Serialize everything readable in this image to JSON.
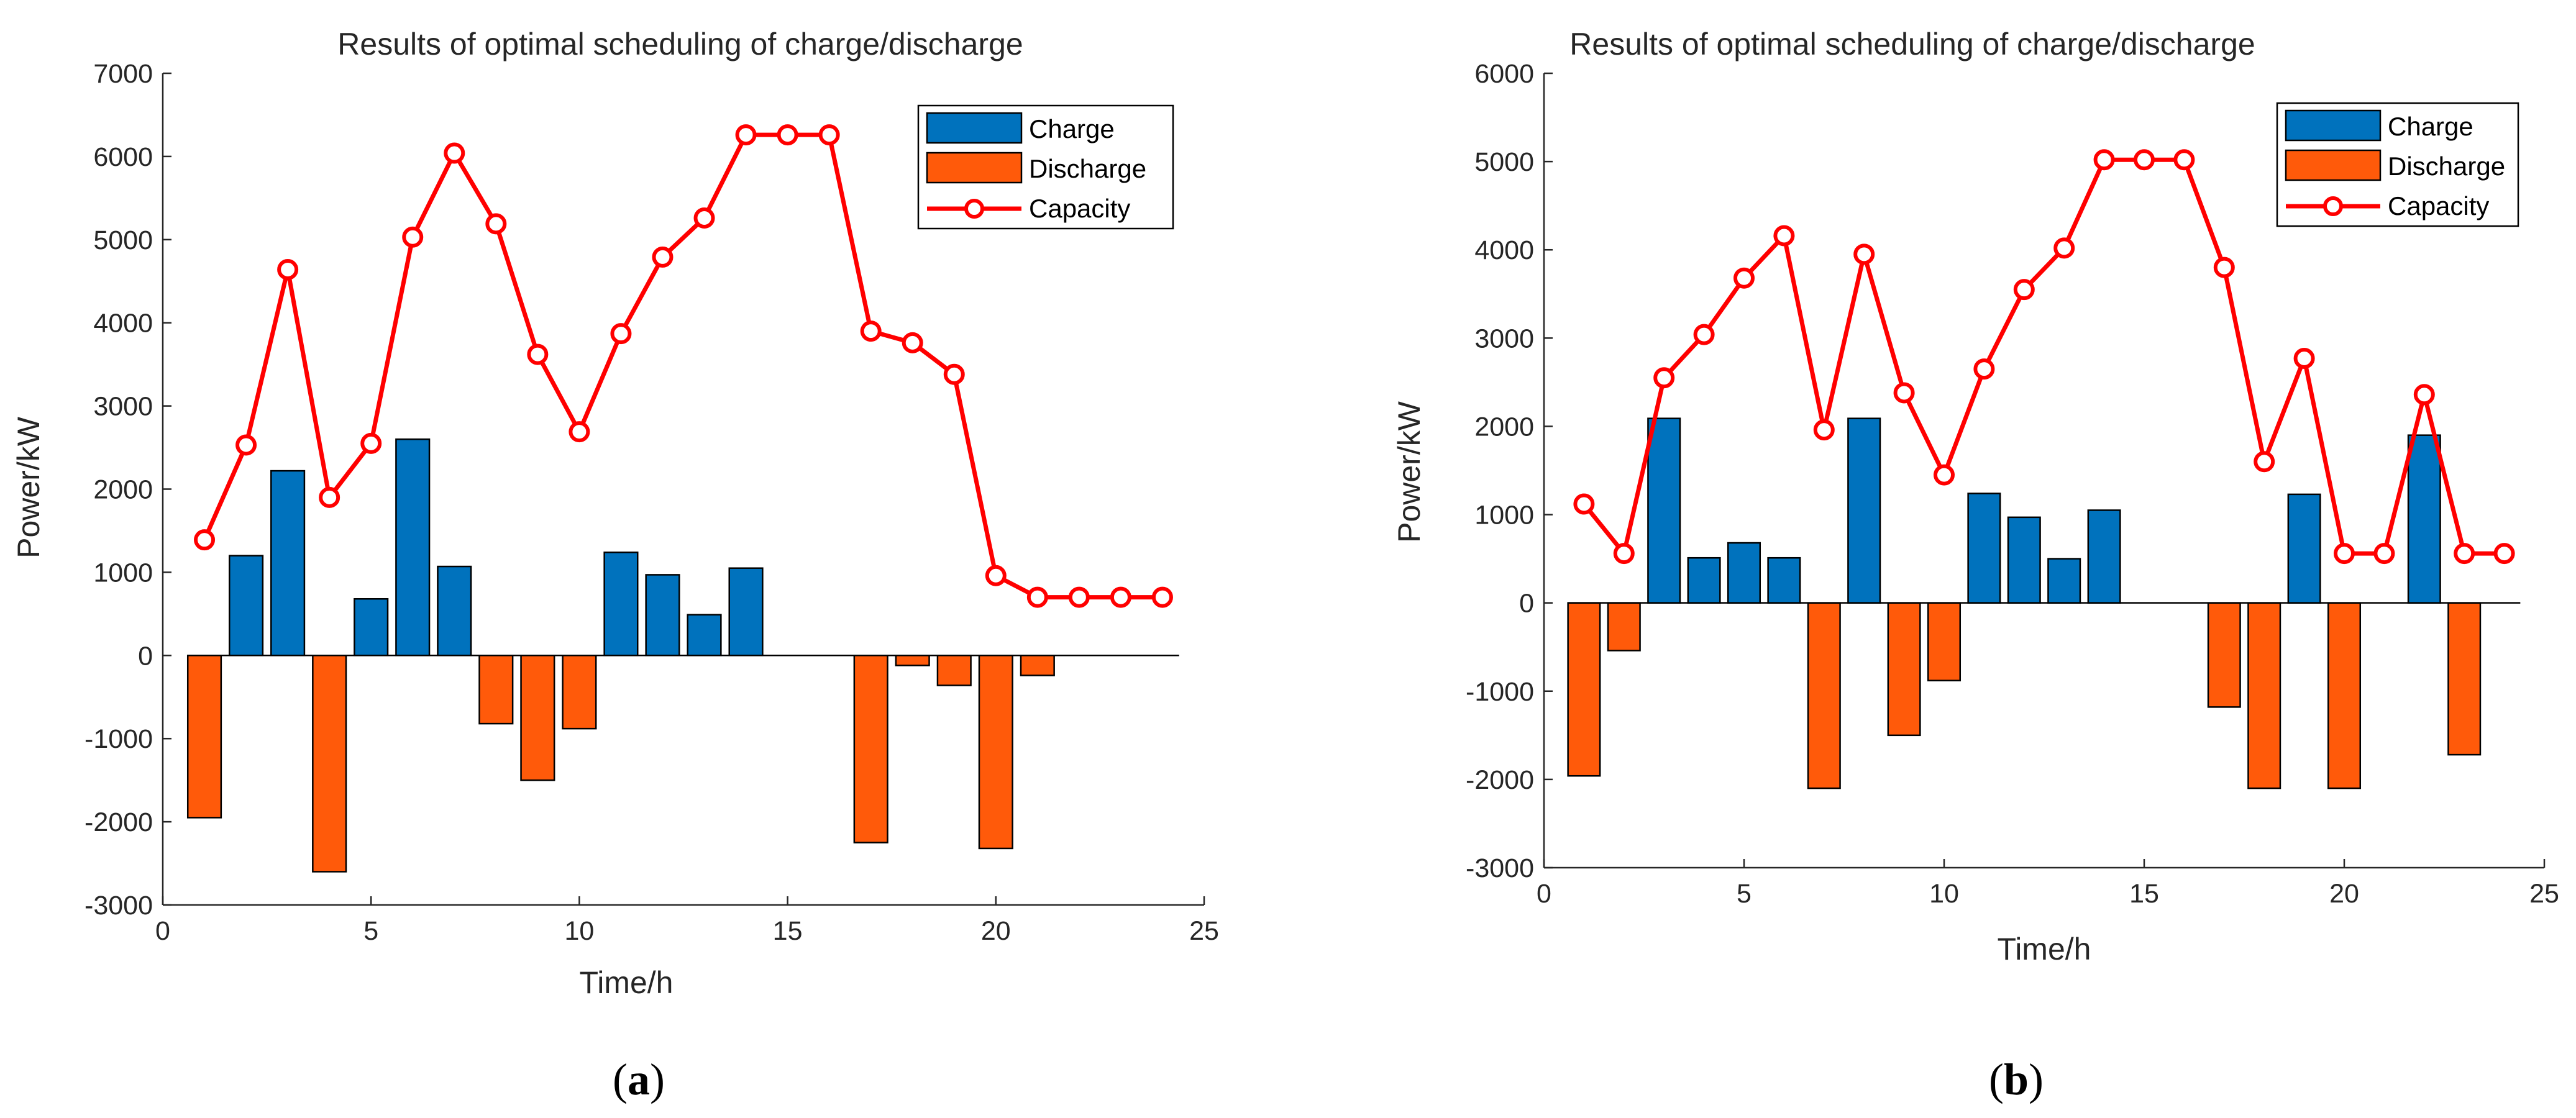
{
  "colors": {
    "charge": "#0072BD",
    "discharge": "#FF5A0A",
    "capacity": "#FF0000",
    "axis": "#262626"
  },
  "chart_data": [
    {
      "type": "bar",
      "title": "Results of optimal scheduling of charge/discharge",
      "xlabel": "Time/h",
      "ylabel": "Power/kW",
      "caption": "a",
      "xlim": [
        0,
        25
      ],
      "ylim": [
        -3000,
        7000
      ],
      "xticks": [
        "0",
        "5",
        "10",
        "15",
        "20",
        "25"
      ],
      "yticks": [
        "-3000",
        "-2000",
        "-1000",
        "0",
        "1000",
        "2000",
        "3000",
        "4000",
        "5000",
        "6000",
        "7000"
      ],
      "x": [
        1,
        2,
        3,
        4,
        5,
        6,
        7,
        8,
        9,
        10,
        11,
        12,
        13,
        14,
        15,
        16,
        17,
        18,
        19,
        20,
        21,
        22,
        23,
        24
      ],
      "series": [
        {
          "name": "Charge",
          "kind": "bar",
          "values": [
            0,
            1200,
            2220,
            0,
            680,
            2600,
            1070,
            0,
            0,
            0,
            1240,
            970,
            490,
            1050,
            0,
            0,
            0,
            0,
            0,
            0,
            0,
            0,
            0,
            0
          ]
        },
        {
          "name": "Discharge",
          "kind": "bar",
          "values": [
            -1950,
            0,
            0,
            -2600,
            0,
            0,
            0,
            -820,
            -1500,
            -880,
            0,
            0,
            0,
            0,
            0,
            0,
            -2250,
            -120,
            -360,
            -2320,
            -240,
            0,
            0,
            0
          ]
        },
        {
          "name": "Capacity",
          "kind": "line",
          "values": [
            1390,
            2530,
            4640,
            1900,
            2550,
            5030,
            6040,
            5190,
            3620,
            2690,
            3870,
            4790,
            5260,
            6260,
            6260,
            6260,
            3900,
            3760,
            3380,
            960,
            700,
            700,
            700,
            700
          ]
        }
      ],
      "legend": [
        "Charge",
        "Discharge",
        "Capacity"
      ],
      "legend_location": "top-right"
    },
    {
      "type": "bar",
      "title": "Results of optimal scheduling of charge/discharge",
      "xlabel": "Time/h",
      "ylabel": "Power/kW",
      "caption": "b",
      "xlim": [
        0,
        25
      ],
      "ylim": [
        -3000,
        6000
      ],
      "xticks": [
        "0",
        "5",
        "10",
        "15",
        "20",
        "25"
      ],
      "yticks": [
        "-3000",
        "-2000",
        "-1000",
        "0",
        "1000",
        "2000",
        "3000",
        "4000",
        "5000",
        "6000"
      ],
      "x": [
        1,
        2,
        3,
        4,
        5,
        6,
        7,
        8,
        9,
        10,
        11,
        12,
        13,
        14,
        15,
        16,
        17,
        18,
        19,
        20,
        21,
        22,
        23,
        24
      ],
      "series": [
        {
          "name": "Charge",
          "kind": "bar",
          "values": [
            0,
            0,
            2090,
            510,
            680,
            510,
            0,
            2090,
            0,
            0,
            1240,
            970,
            500,
            1050,
            0,
            0,
            0,
            0,
            1230,
            0,
            0,
            1900,
            0,
            0
          ]
        },
        {
          "name": "Discharge",
          "kind": "bar",
          "values": [
            -1960,
            -540,
            0,
            0,
            0,
            0,
            -2100,
            0,
            -1500,
            -880,
            0,
            0,
            0,
            0,
            0,
            0,
            -1180,
            -2100,
            0,
            -2100,
            0,
            0,
            -1720,
            0
          ]
        },
        {
          "name": "Capacity",
          "kind": "line",
          "values": [
            1120,
            560,
            2550,
            3040,
            3680,
            4160,
            1960,
            3950,
            2380,
            1450,
            2650,
            3550,
            4020,
            5020,
            5020,
            5020,
            3800,
            1600,
            2770,
            560,
            560,
            2360,
            560,
            560
          ]
        }
      ],
      "legend": [
        "Charge",
        "Discharge",
        "Capacity"
      ],
      "legend_location": "top-right"
    }
  ]
}
